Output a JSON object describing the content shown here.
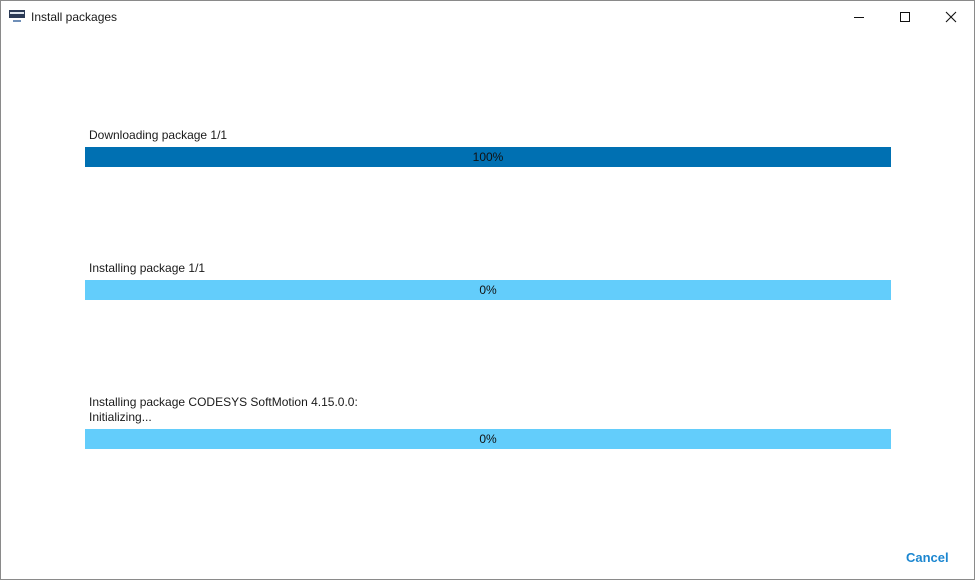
{
  "window": {
    "title": "Install packages"
  },
  "progress": [
    {
      "label": "Downloading package 1/1",
      "value": 100,
      "value_label": "100%"
    },
    {
      "label": "Installing package 1/1",
      "value": 0,
      "value_label": "0%"
    },
    {
      "label": "Installing package CODESYS SoftMotion 4.15.0.0:",
      "status": "Initializing...",
      "value": 0,
      "value_label": "0%"
    }
  ],
  "buttons": {
    "cancel": "Cancel"
  }
}
